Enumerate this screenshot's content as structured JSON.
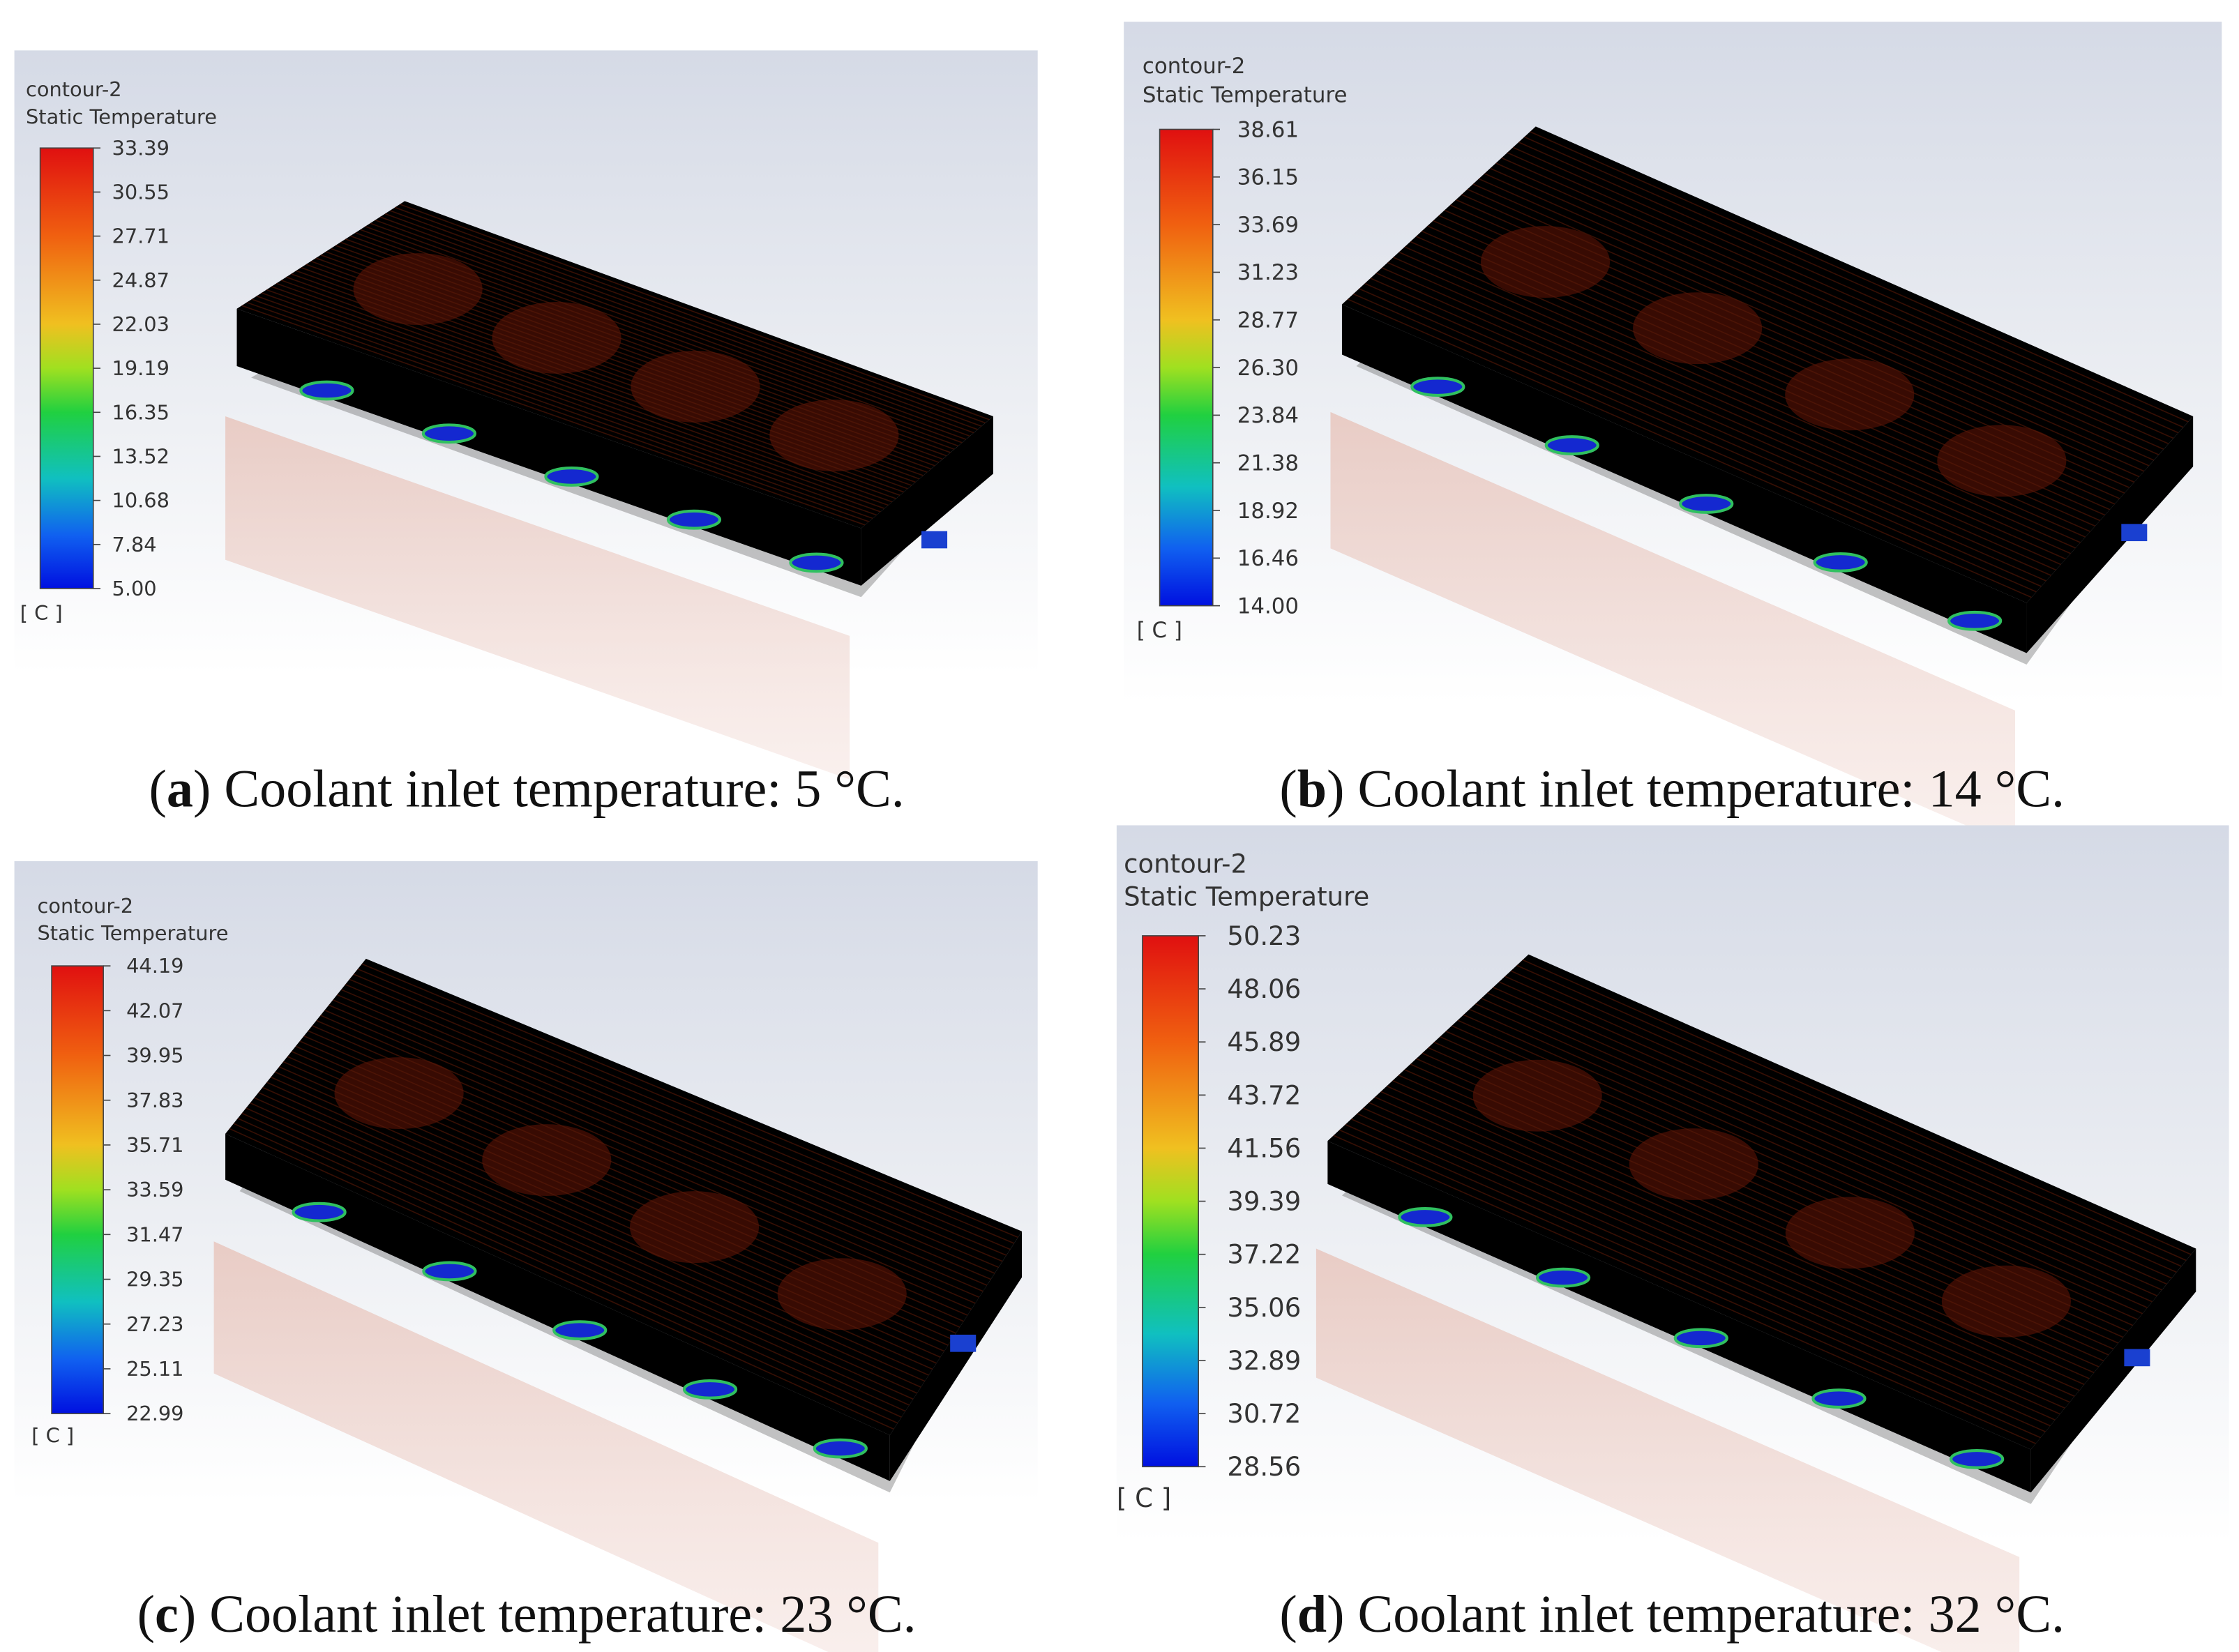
{
  "panels": [
    {
      "title": [
        "contour-2",
        "Static Temperature"
      ],
      "ticks": [
        "33.39",
        "30.55",
        "27.71",
        "24.87",
        "22.03",
        "19.19",
        "16.35",
        "13.52",
        "10.68",
        "7.84",
        "5.00"
      ],
      "unit": "[ C ]",
      "caption": {
        "open": "(",
        "letter": "a",
        "text": ") Coolant inlet temperature: 5 °C."
      }
    },
    {
      "title": [
        "contour-2",
        "Static Temperature"
      ],
      "ticks": [
        "38.61",
        "36.15",
        "33.69",
        "31.23",
        "28.77",
        "26.30",
        "23.84",
        "21.38",
        "18.92",
        "16.46",
        "14.00"
      ],
      "unit": "[ C ]",
      "caption": {
        "open": "(",
        "letter": "b",
        "text": ") Coolant inlet temperature: 14 °C."
      }
    },
    {
      "title": [
        "contour-2",
        "Static Temperature"
      ],
      "ticks": [
        "44.19",
        "42.07",
        "39.95",
        "37.83",
        "35.71",
        "33.59",
        "31.47",
        "29.35",
        "27.23",
        "25.11",
        "22.99"
      ],
      "unit": "[ C ]",
      "caption": {
        "open": "(",
        "letter": "c",
        "text": ") Coolant inlet temperature: 23 °C."
      }
    },
    {
      "title": [
        "contour-2",
        "Static Temperature"
      ],
      "ticks": [
        "50.23",
        "48.06",
        "45.89",
        "43.72",
        "41.56",
        "39.39",
        "37.22",
        "35.06",
        "32.89",
        "30.72",
        "28.56"
      ],
      "unit": "[ C ]",
      "caption": {
        "open": "(",
        "letter": "d",
        "text": ") Coolant inlet temperature: 32 °C."
      }
    }
  ]
}
